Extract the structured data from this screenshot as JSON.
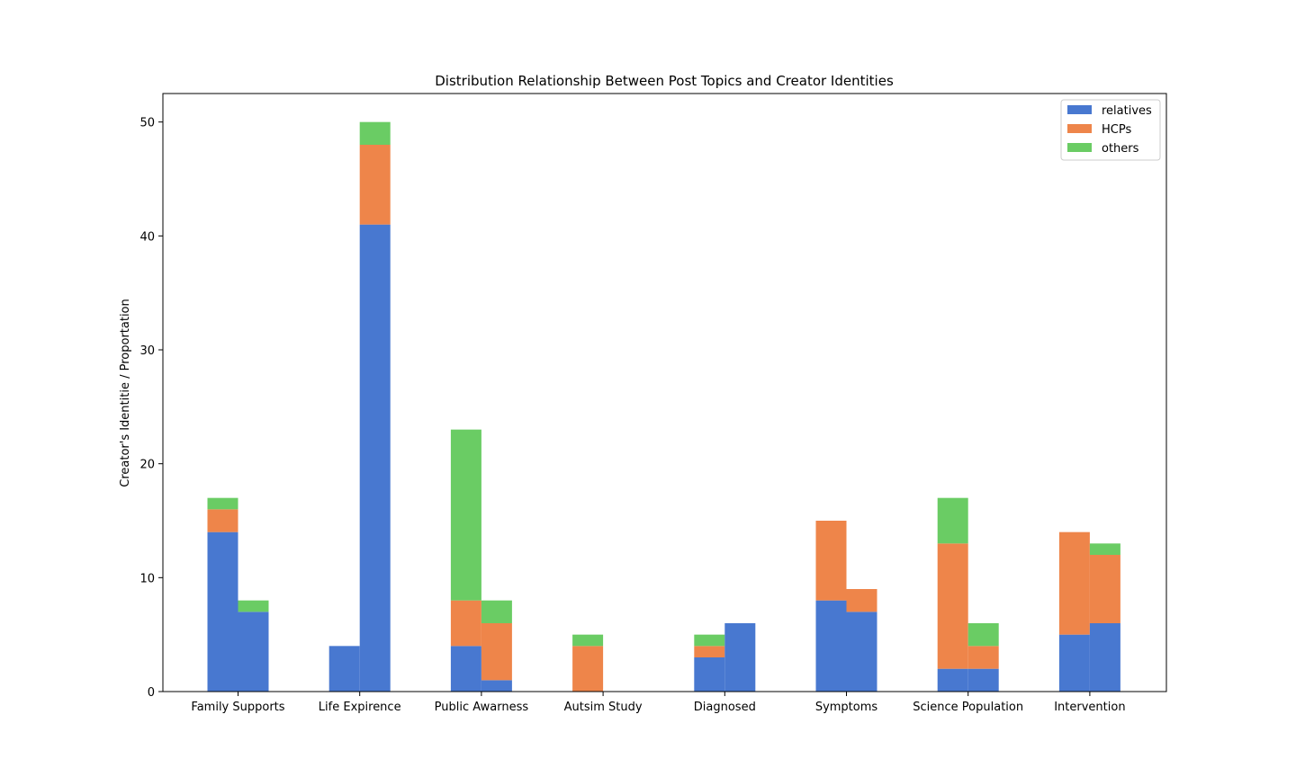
{
  "chart_data": {
    "type": "bar",
    "stacked": true,
    "grouped": true,
    "title": "Distribution Relationship Between Post Topics and Creator Identities",
    "xlabel": "",
    "ylabel": "Creator's Identitie / Proportation",
    "ylim": [
      0,
      52.5
    ],
    "yticks": [
      0,
      10,
      20,
      30,
      40,
      50
    ],
    "grid": false,
    "legend_position": "top-right",
    "categories": [
      "Family Supports",
      "Life Expirence",
      "Public Awarness",
      "Autsim Study",
      "Diagnosed",
      "Symptoms",
      "Science Population",
      "Intervention"
    ],
    "series": [
      {
        "name": "relatives",
        "color": "#4878d0",
        "groups": [
          [
            14,
            7
          ],
          [
            4,
            41
          ],
          [
            4,
            1
          ],
          [
            0,
            0
          ],
          [
            3,
            6
          ],
          [
            8,
            7
          ],
          [
            2,
            2
          ],
          [
            5,
            6
          ]
        ]
      },
      {
        "name": "HCPs",
        "color": "#ee854a",
        "groups": [
          [
            2,
            0
          ],
          [
            0,
            7
          ],
          [
            4,
            5
          ],
          [
            4,
            0
          ],
          [
            1,
            0
          ],
          [
            7,
            2
          ],
          [
            11,
            2
          ],
          [
            9,
            6
          ]
        ]
      },
      {
        "name": "others",
        "color": "#6acc64",
        "groups": [
          [
            1,
            1
          ],
          [
            0,
            2
          ],
          [
            15,
            2
          ],
          [
            1,
            0
          ],
          [
            1,
            0
          ],
          [
            0,
            0
          ],
          [
            4,
            2
          ],
          [
            0,
            1
          ]
        ]
      }
    ]
  }
}
